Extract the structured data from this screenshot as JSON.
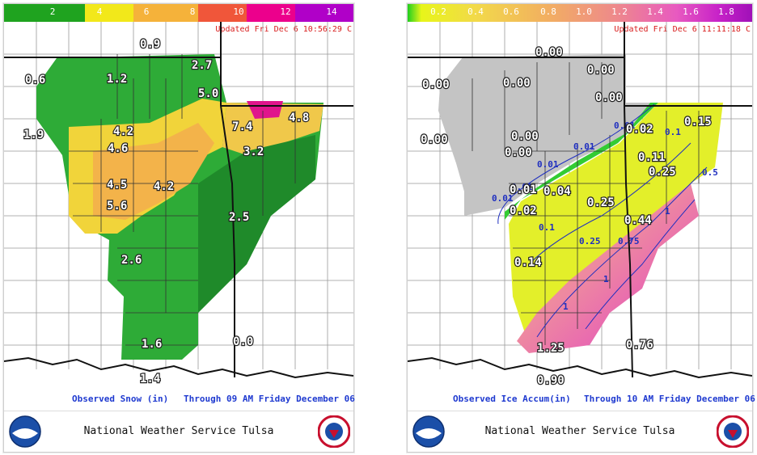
{
  "left_panel": {
    "legend": {
      "ticks": [
        "2",
        "4",
        "6",
        "8",
        "10",
        "12",
        "14"
      ],
      "colors": [
        "#1fa31f",
        "#f2e81a",
        "#f5b23a",
        "#f04e3a",
        "#ec008c",
        "#e000b8",
        "#b000c8"
      ]
    },
    "updated_text": "Updated Fri Dec 6 10:56:29 C",
    "caption_left": "Observed Snow (in)",
    "caption_right": "Through 09 AM Friday December 06",
    "footer_title": "National Weather Service Tulsa",
    "values": [
      "0.9",
      "0.6",
      "1.2",
      "2.7",
      "5.0",
      "1.9",
      "4.2",
      "4.6",
      "7.4",
      "4.8",
      "3.2",
      "4.5",
      "4.2",
      "5.6",
      "2.5",
      "2.6",
      "1.6",
      "0.0",
      "1.4"
    ]
  },
  "right_panel": {
    "legend": {
      "ticks": [
        "0.2",
        "0.4",
        "0.6",
        "0.8",
        "1.0",
        "1.2",
        "1.4",
        "1.6",
        "1.8"
      ],
      "colors": [
        "#e8f51a",
        "#f2d94a",
        "#f2b860",
        "#f09a7a",
        "#ec7aa8",
        "#e85ac0",
        "#dd38c8",
        "#c823c8",
        "#b010c0"
      ]
    },
    "updated_text": "Updated Fri Dec 6 11:11:18 C",
    "caption_left": "Observed Ice Accum(in)",
    "caption_right": "Through 10 AM Friday December 06",
    "footer_title": "National Weather Service Tulsa",
    "values": [
      "0.00",
      "0.00",
      "0.00",
      "0.00",
      "0.00",
      "0.00",
      "0.15",
      "0.02",
      "0.00",
      "0.00",
      "0.11",
      "0.25",
      "0.01",
      "0.04",
      "0.25",
      "0.02",
      "0.44",
      "0.14",
      "1.25",
      "0.76",
      "0.90"
    ],
    "contour_labels": [
      "0.01",
      "0.01",
      "0.01",
      "0.01",
      "0.01",
      "0.1",
      "0.5",
      "0.1",
      "0.25",
      "0.75",
      "1",
      "1",
      "1"
    ]
  },
  "logos": {
    "noaa": "noaa-logo",
    "nws": "nws-logo"
  }
}
